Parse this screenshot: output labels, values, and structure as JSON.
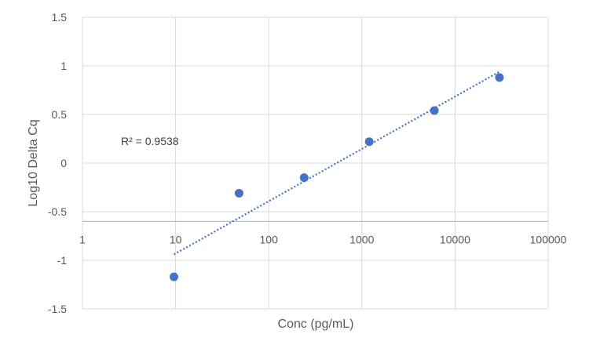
{
  "chart_data": {
    "type": "scatter",
    "xlabel": "Conc (pg/mL)",
    "ylabel": "Log10 Delta Cq",
    "x_scale": "log",
    "xlim": [
      1,
      100000
    ],
    "ylim": [
      -1.5,
      1.5
    ],
    "x_ticks": [
      "1",
      "10",
      "100",
      "1000",
      "10000",
      "100000"
    ],
    "y_ticks": [
      "-1.5",
      "-1",
      "-0.5",
      "0",
      "0.5",
      "1",
      "1.5"
    ],
    "x_axis_crosses_y": -0.6,
    "grid": true,
    "points": [
      {
        "x": 9.6,
        "y": -1.17
      },
      {
        "x": 48,
        "y": -0.31
      },
      {
        "x": 240,
        "y": -0.15
      },
      {
        "x": 1200,
        "y": 0.22
      },
      {
        "x": 6000,
        "y": 0.54
      },
      {
        "x": 30000,
        "y": 0.88
      }
    ],
    "trendline": {
      "type": "log",
      "from": {
        "x": 9.6,
        "y": -0.94
      },
      "to": {
        "x": 30000,
        "y": 0.94
      }
    },
    "annotation": "R² = 0.9538",
    "colors": {
      "points": "#4472C4",
      "trendline": "#4472C4",
      "grid": "#D9D9D9",
      "axis": "#BFBFBF",
      "text": "#595959"
    }
  }
}
